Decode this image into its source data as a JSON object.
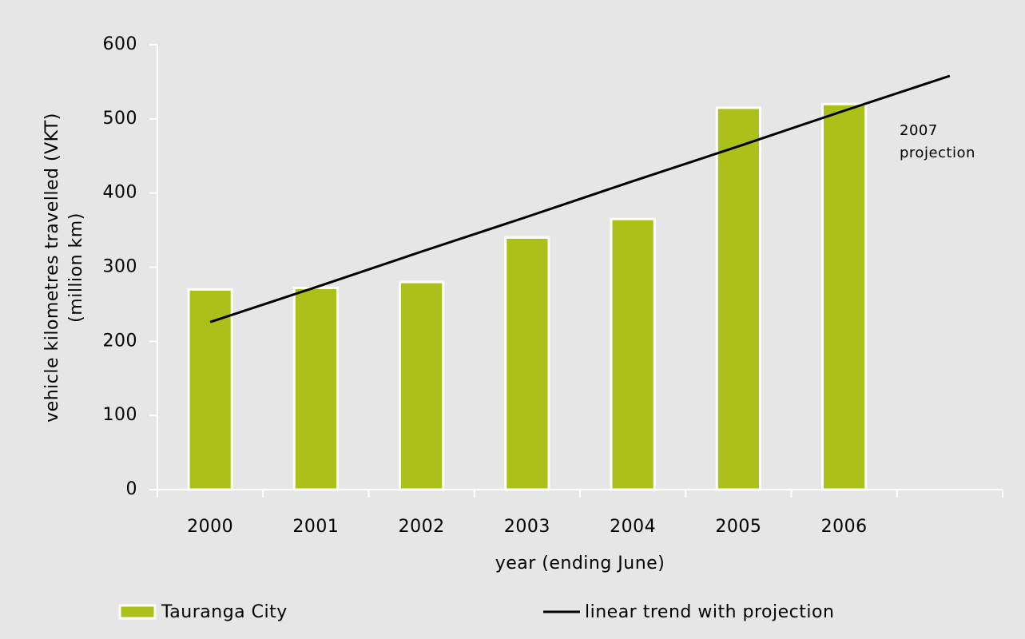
{
  "chart_data": {
    "type": "bar",
    "categories": [
      "2000",
      "2001",
      "2002",
      "2003",
      "2004",
      "2005",
      "2006",
      null
    ],
    "series": [
      {
        "name": "Tauranga City",
        "type": "bar",
        "color": "#abc11a",
        "values": [
          270,
          272,
          280,
          340,
          365,
          515,
          520,
          null
        ]
      },
      {
        "name": "linear trend with projection",
        "type": "line",
        "color": "#000000",
        "values": [
          226,
          273,
          321,
          368,
          416,
          463,
          511,
          558
        ]
      }
    ],
    "ylim": [
      0,
      600
    ],
    "yticks": [
      0,
      100,
      200,
      300,
      400,
      500,
      600
    ],
    "ylabel": [
      "vehicle kilometres travelled (VKT)",
      "(million km)"
    ],
    "xlabel": "year (ending June)",
    "annotation": [
      "2007",
      "projection"
    ],
    "legend": "bottom"
  }
}
